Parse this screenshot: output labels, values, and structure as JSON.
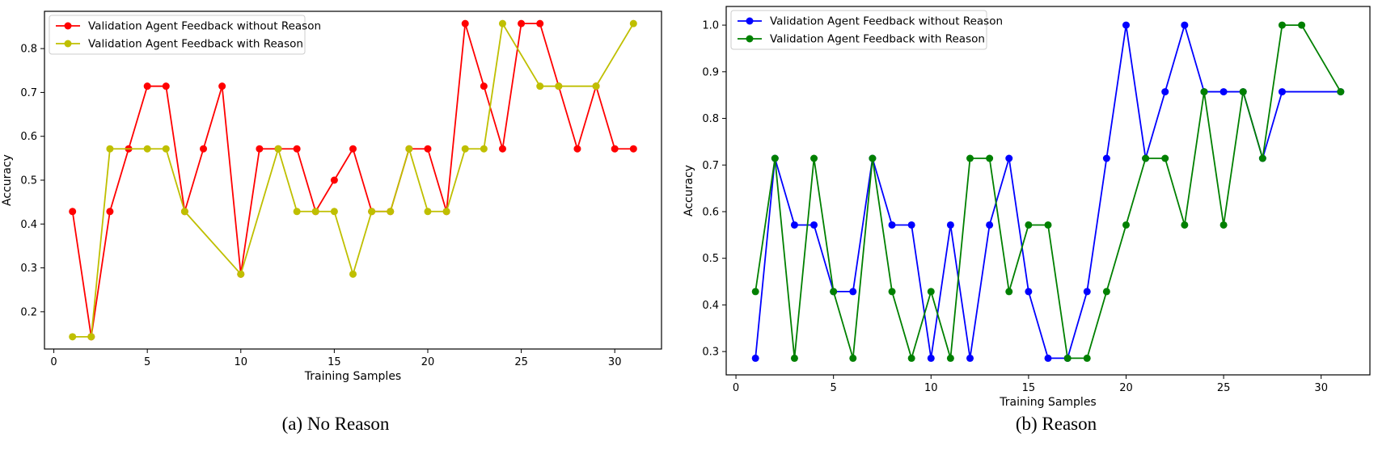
{
  "chart_data": [
    {
      "type": "line",
      "caption": "(a) No Reason",
      "xlabel": "Training Samples",
      "ylabel": "Accuracy",
      "xlim": [
        -0.5,
        32.5
      ],
      "ylim": [
        0.115,
        0.885
      ],
      "xticks": [
        0,
        5,
        10,
        15,
        20,
        25,
        30
      ],
      "yticks": [
        0.2,
        0.3,
        0.4,
        0.5,
        0.6,
        0.7,
        0.8
      ],
      "grid": false,
      "legend_position": "top-left",
      "series": [
        {
          "name": "Validation Agent Feedback without Reason",
          "color": "#ff0000",
          "x": [
            1,
            2,
            3,
            4,
            5,
            6,
            7,
            8,
            9,
            10,
            11,
            12,
            13,
            14,
            15,
            16,
            17,
            18,
            19,
            20,
            21,
            22,
            23,
            24,
            25,
            26,
            27,
            28,
            29,
            30,
            31
          ],
          "y": [
            0.4286,
            0.1429,
            0.4286,
            0.5714,
            0.7143,
            0.7143,
            0.4286,
            0.5714,
            0.7143,
            0.2857,
            0.5714,
            0.5714,
            0.5714,
            0.4286,
            0.5,
            0.5714,
            0.4286,
            0.4286,
            0.5714,
            0.5714,
            0.4286,
            0.8571,
            0.7143,
            0.5714,
            0.8571,
            0.8571,
            0.7143,
            0.5714,
            0.7143,
            0.5714,
            0.5714
          ]
        },
        {
          "name": "Validation Agent Feedback with Reason",
          "color": "#bfbf00",
          "x": [
            1,
            2,
            3,
            5,
            6,
            7,
            10,
            12,
            13,
            14,
            15,
            16,
            17,
            18,
            19,
            20,
            21,
            22,
            23,
            24,
            26,
            27,
            29,
            31
          ],
          "y": [
            0.1429,
            0.1429,
            0.5714,
            0.5714,
            0.5714,
            0.4286,
            0.2857,
            0.5714,
            0.4286,
            0.4286,
            0.4286,
            0.2857,
            0.4286,
            0.4286,
            0.5714,
            0.4286,
            0.4286,
            0.5714,
            0.5714,
            0.8571,
            0.7143,
            0.7143,
            0.7143,
            0.8571
          ]
        }
      ]
    },
    {
      "type": "line",
      "caption": "(b) Reason",
      "xlabel": "Training Samples",
      "ylabel": "Accuracy",
      "xlim": [
        -0.5,
        32.5
      ],
      "ylim": [
        0.25,
        1.04
      ],
      "xticks": [
        0,
        5,
        10,
        15,
        20,
        25,
        30
      ],
      "yticks": [
        0.3,
        0.4,
        0.5,
        0.6,
        0.7,
        0.8,
        0.9,
        1.0
      ],
      "grid": false,
      "legend_position": "top-left",
      "series": [
        {
          "name": "Validation Agent Feedback without Reason",
          "color": "#0000ff",
          "x": [
            1,
            2,
            3,
            4,
            5,
            6,
            7,
            8,
            9,
            10,
            11,
            12,
            13,
            14,
            15,
            16,
            17,
            18,
            19,
            20,
            21,
            22,
            23,
            24,
            25,
            26,
            27,
            28,
            31
          ],
          "y": [
            0.2857,
            0.7143,
            0.5714,
            0.5714,
            0.4286,
            0.4286,
            0.7143,
            0.5714,
            0.5714,
            0.2857,
            0.5714,
            0.2857,
            0.5714,
            0.7143,
            0.4286,
            0.2857,
            0.2857,
            0.4286,
            0.7143,
            1.0,
            0.7143,
            0.8571,
            1.0,
            0.8571,
            0.8571,
            0.8571,
            0.7143,
            0.8571,
            0.8571
          ]
        },
        {
          "name": "Validation Agent Feedback with Reason",
          "color": "#008000",
          "x": [
            1,
            2,
            3,
            4,
            5,
            6,
            7,
            8,
            9,
            10,
            11,
            12,
            13,
            14,
            15,
            16,
            17,
            18,
            19,
            20,
            21,
            22,
            23,
            24,
            25,
            26,
            27,
            28,
            29,
            31
          ],
          "y": [
            0.4286,
            0.7143,
            0.2857,
            0.7143,
            0.4286,
            0.2857,
            0.7143,
            0.4286,
            0.2857,
            0.4286,
            0.2857,
            0.7143,
            0.7143,
            0.4286,
            0.5714,
            0.5714,
            0.2857,
            0.2857,
            0.4286,
            0.5714,
            0.7143,
            0.7143,
            0.5714,
            0.8571,
            0.5714,
            0.8571,
            0.7143,
            1.0,
            1.0,
            0.8571
          ]
        }
      ]
    }
  ]
}
